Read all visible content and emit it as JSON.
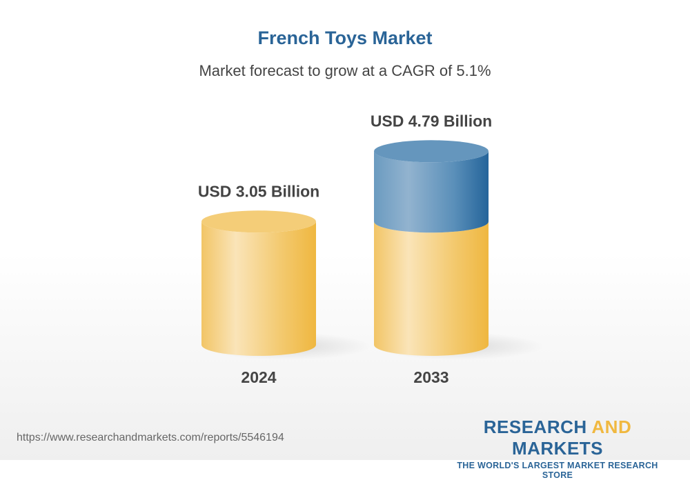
{
  "title": "French Toys Market",
  "subtitle": "Market forecast to grow at a CAGR of 5.1%",
  "chart_data": {
    "type": "bar",
    "style": "3d-cylinder",
    "categories": [
      "2024",
      "2033"
    ],
    "values": [
      3.05,
      4.79
    ],
    "data_labels": [
      "USD 3.05 Billion",
      "USD 4.79 Billion"
    ],
    "unit": "USD Billion",
    "colors": {
      "base": "#f0b840",
      "growth": "#2a6497"
    }
  },
  "footer": {
    "url": "https://www.researchandmarkets.com/reports/5546194",
    "logo": {
      "part1": "RESEARCH ",
      "part2": "AND",
      "part3": " MARKETS",
      "tagline": "THE WORLD'S LARGEST MARKET RESEARCH STORE"
    }
  }
}
